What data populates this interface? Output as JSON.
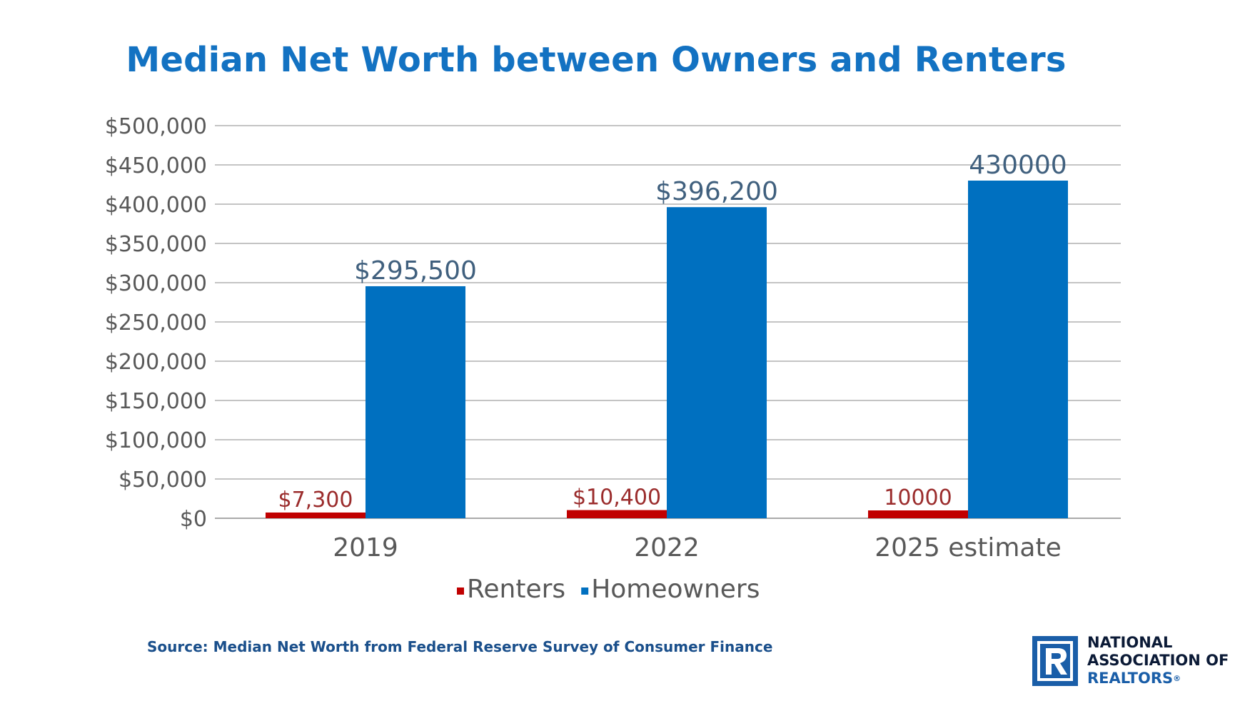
{
  "page": {
    "title": "Median Net Worth between Owners and Renters",
    "source": "Source: Median Net Worth from Federal Reserve Survey of Consumer Finance"
  },
  "logo": {
    "line1": "NATIONAL",
    "line2": "ASSOCIATION OF",
    "line3": "REALTORS",
    "registered": "®",
    "brand_color": "#1a5ea8",
    "icon": "realtor-r-mark-icon"
  },
  "colors": {
    "title": "#1372c2",
    "renters": "#c00000",
    "homeowners": "#0070c0",
    "grid": "#c4c4c4"
  },
  "chart_data": {
    "type": "bar",
    "title": "Median Net Worth between Owners and Renters",
    "categories": [
      "2019",
      "2022",
      "2025 estimate"
    ],
    "series": [
      {
        "name": "Renters",
        "values": [
          7300,
          10400,
          10000
        ],
        "labels": [
          "$7,300",
          "$10,400",
          "10000"
        ],
        "color": "#c00000"
      },
      {
        "name": "Homeowners",
        "values": [
          295500,
          396200,
          430000
        ],
        "labels": [
          "$295,500",
          "$396,200",
          "430000"
        ],
        "color": "#0070c0"
      }
    ],
    "ylim": [
      0,
      500000
    ],
    "yticks": [
      0,
      50000,
      100000,
      150000,
      200000,
      250000,
      300000,
      350000,
      400000,
      450000,
      500000
    ],
    "ytick_labels": [
      "$0",
      "$50,000",
      "$100,000",
      "$150,000",
      "$200,000",
      "$250,000",
      "$300,000",
      "$350,000",
      "$400,000",
      "$450,000",
      "$500,000"
    ],
    "grid": true,
    "legend": "bottom-center"
  }
}
